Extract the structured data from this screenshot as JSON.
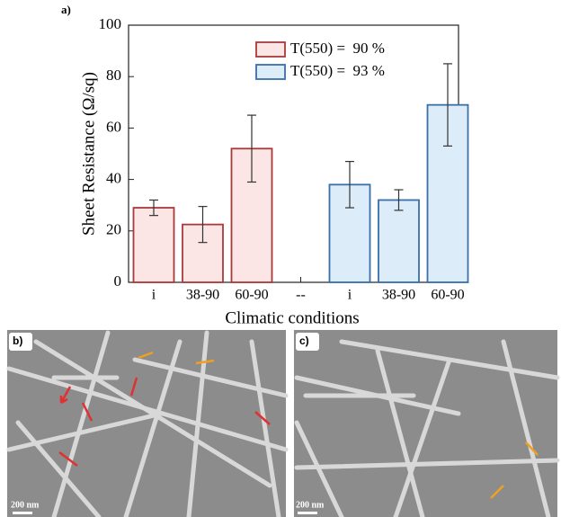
{
  "chart_data": {
    "type": "bar",
    "panel_label": "a)",
    "x_label": "Climatic conditions",
    "y_label": "Sheet Resistance (Ω/sq)",
    "categories": [
      "i",
      "38-90",
      "60-90",
      "--",
      "i",
      "38-90",
      "60-90"
    ],
    "series": [
      {
        "name": "T(550) =  90 %",
        "color": "#a83a3a",
        "fill": "#fbe5e5",
        "values": [
          29,
          22.5,
          52,
          null,
          null,
          null,
          null
        ],
        "errors": [
          3,
          7,
          13,
          null,
          null,
          null,
          null
        ]
      },
      {
        "name": "T(550) =  93 %",
        "color": "#3a6fa8",
        "fill": "#dcecf8",
        "values": [
          null,
          null,
          null,
          null,
          38,
          32,
          69
        ],
        "errors": [
          null,
          null,
          null,
          null,
          9,
          4,
          16
        ]
      }
    ],
    "ylim": [
      0,
      100
    ],
    "yticks": [
      0,
      20,
      40,
      60,
      80,
      100
    ],
    "legend": "top-center"
  },
  "panels": [
    {
      "label": "b)",
      "scale": "200 nm"
    },
    {
      "label": "c)",
      "scale": "200 nm"
    }
  ]
}
